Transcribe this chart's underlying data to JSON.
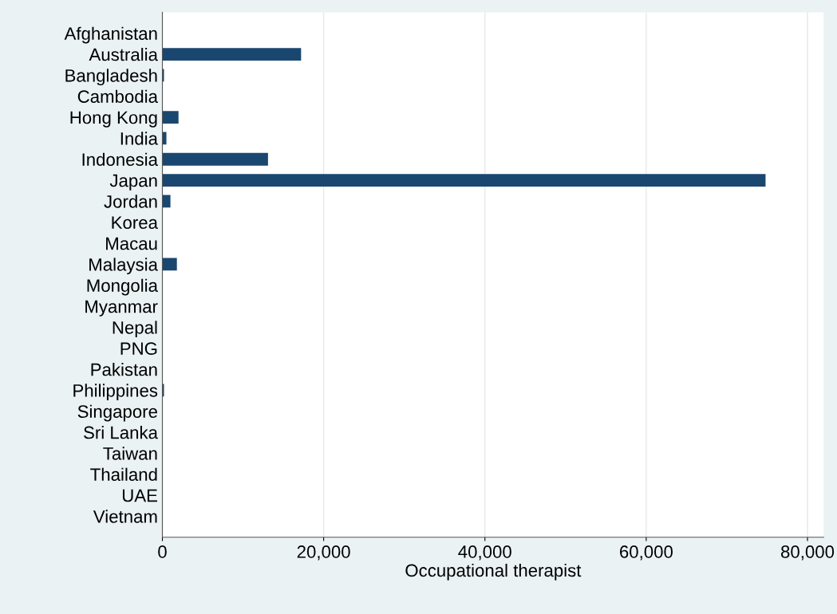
{
  "chart_data": {
    "type": "bar",
    "orientation": "horizontal",
    "xlabel": "Occupational therapist",
    "categories": [
      "Afghanistan",
      "Australia",
      "Bangladesh",
      "Cambodia",
      "Hong Kong",
      "India",
      "Indonesia",
      "Japan",
      "Jordan",
      "Korea",
      "Macau",
      "Malaysia",
      "Mongolia",
      "Myanmar",
      "Nepal",
      "PNG",
      "Pakistan",
      "Philippines",
      "Singapore",
      "Sri Lanka",
      "Taiwan",
      "Thailand",
      "UAE",
      "Vietnam"
    ],
    "values": [
      0,
      17200,
      200,
      0,
      2000,
      500,
      13100,
      74800,
      1000,
      0,
      0,
      1800,
      0,
      0,
      0,
      0,
      0,
      200,
      0,
      0,
      0,
      0,
      0,
      0
    ],
    "color": "#1a476f",
    "xlim": [
      0,
      82000
    ],
    "xticks": [
      {
        "value": 0,
        "label": "0"
      },
      {
        "value": 20000,
        "label": "20,000"
      },
      {
        "value": 40000,
        "label": "40,000"
      },
      {
        "value": 60000,
        "label": "60,000"
      },
      {
        "value": 80000,
        "label": "80,000"
      }
    ],
    "grid": "x",
    "legend": false
  }
}
